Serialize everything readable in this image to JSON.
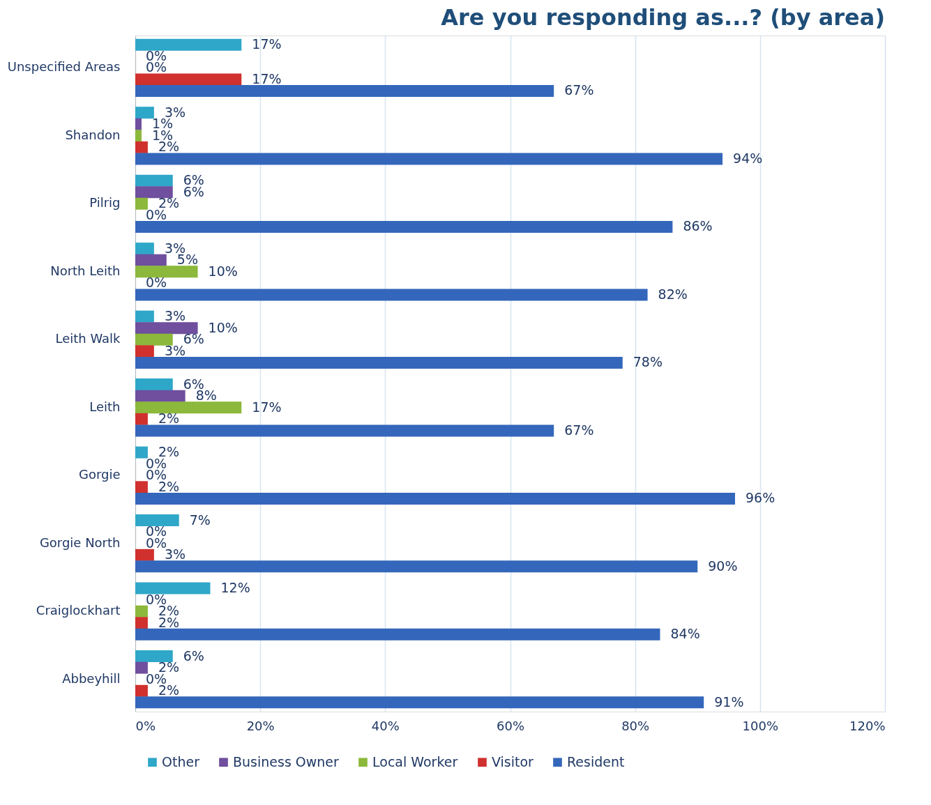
{
  "chart_data": {
    "type": "bar",
    "orientation": "horizontal",
    "title": "Are you responding as...? (by area)",
    "categories": [
      "Unspecified Areas",
      "Shandon",
      "Pilrig",
      "North Leith",
      "Leith Walk",
      "Leith",
      "Gorgie",
      "Gorgie North",
      "Craiglockhart",
      "Abbeyhill"
    ],
    "series": [
      {
        "name": "Other",
        "color": "#2fa7c8",
        "values": [
          17,
          3,
          6,
          3,
          3,
          6,
          2,
          7,
          12,
          6
        ],
        "value_labels": [
          "17%",
          "3%",
          "6%",
          "3%",
          "3%",
          "6%",
          "2%",
          "7%",
          "12%",
          "6%"
        ]
      },
      {
        "name": "Business Owner",
        "color": "#6f4f9e",
        "values": [
          0,
          1,
          6,
          5,
          10,
          8,
          0,
          0,
          0,
          2
        ],
        "value_labels": [
          "0%",
          "1%",
          "6%",
          "5%",
          "10%",
          "8%",
          "0%",
          "0%",
          "0%",
          "2%"
        ]
      },
      {
        "name": "Local Worker",
        "color": "#8cb83b",
        "values": [
          0,
          1,
          2,
          10,
          6,
          17,
          0,
          0,
          2,
          0
        ],
        "value_labels": [
          "0%",
          "1%",
          "2%",
          "10%",
          "6%",
          "17%",
          "0%",
          "0%",
          "2%",
          "0%"
        ]
      },
      {
        "name": "Visitor",
        "color": "#d0302e",
        "values": [
          17,
          2,
          0,
          0,
          3,
          2,
          2,
          3,
          2,
          2
        ],
        "value_labels": [
          "17%",
          "2%",
          "0%",
          "0%",
          "3%",
          "2%",
          "2%",
          "3%",
          "2%",
          "2%"
        ]
      },
      {
        "name": "Resident",
        "color": "#3467bb",
        "values": [
          67,
          94,
          86,
          82,
          78,
          67,
          96,
          90,
          84,
          91
        ],
        "value_labels": [
          "67%",
          "94%",
          "86%",
          "82%",
          "78%",
          "67%",
          "96%",
          "90%",
          "84%",
          "91%"
        ]
      }
    ],
    "xlim": [
      0,
      120
    ],
    "xticks": [
      {
        "value": 0,
        "label": "0%"
      },
      {
        "value": 20,
        "label": "20%"
      },
      {
        "value": 40,
        "label": "40%"
      },
      {
        "value": 60,
        "label": "60%"
      },
      {
        "value": 80,
        "label": "80%"
      },
      {
        "value": 100,
        "label": "100%"
      },
      {
        "value": 120,
        "label": "120%"
      }
    ],
    "grid": "x",
    "legend": "bottom"
  }
}
